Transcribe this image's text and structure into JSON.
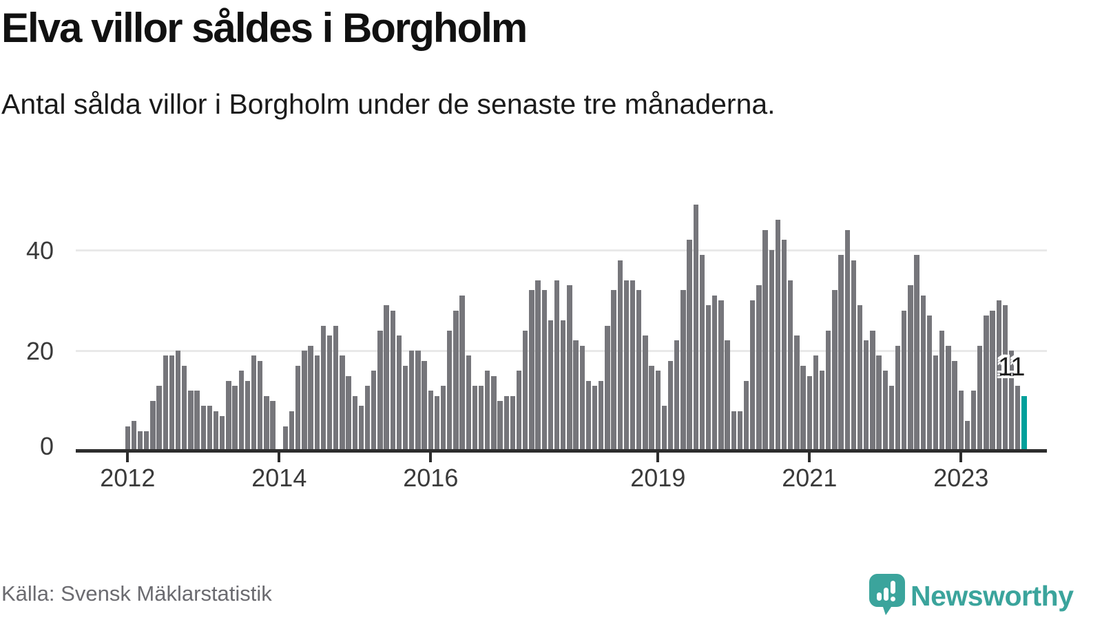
{
  "header": {
    "title": "Elva villor såldes i Borgholm",
    "subtitle": "Antal sålda villor i Borgholm under de senaste tre månaderna."
  },
  "footer": {
    "source": "Källa: Svensk Mäklarstatistik",
    "brand": "Newsworthy"
  },
  "icons": {
    "logo": "newsworthy-speech-bubble-bar-chart-icon"
  },
  "colors": {
    "bar": "#76767b",
    "highlight": "#00a09b",
    "axis": "#2d2d2d",
    "grid": "#e9e9e9",
    "brand_teal": "#3ba49c",
    "text": "#111111",
    "muted_text": "#6b6b70",
    "tick_text": "#3a3a3a"
  },
  "chart_data": {
    "type": "bar",
    "title": "Elva villor såldes i Borgholm",
    "xlabel": "",
    "ylabel": "",
    "x_monthly_start": "2012-01",
    "x_monthly_end": "2023-11",
    "values": [
      5,
      6,
      4,
      4,
      10,
      13,
      19,
      19,
      20,
      17,
      12,
      12,
      9,
      9,
      8,
      7,
      14,
      13,
      16,
      14,
      19,
      18,
      11,
      10,
      0,
      5,
      8,
      17,
      20,
      21,
      19,
      25,
      23,
      25,
      19,
      15,
      11,
      9,
      13,
      16,
      24,
      29,
      28,
      23,
      17,
      20,
      20,
      18,
      12,
      11,
      13,
      24,
      28,
      31,
      19,
      13,
      13,
      16,
      15,
      10,
      11,
      11,
      16,
      24,
      32,
      34,
      32,
      26,
      34,
      26,
      33,
      22,
      21,
      14,
      13,
      14,
      25,
      32,
      38,
      34,
      34,
      32,
      23,
      17,
      16,
      9,
      18,
      22,
      32,
      42,
      49,
      39,
      29,
      31,
      30,
      22,
      8,
      8,
      14,
      30,
      33,
      44,
      40,
      46,
      42,
      34,
      23,
      17,
      15,
      19,
      16,
      24,
      32,
      39,
      44,
      38,
      29,
      22,
      24,
      19,
      16,
      13,
      21,
      28,
      33,
      39,
      31,
      27,
      19,
      24,
      21,
      18,
      12,
      6,
      12,
      21,
      27,
      28,
      30,
      29,
      20,
      13,
      11
    ],
    "highlight_last_bar": true,
    "annotation": {
      "text": "11",
      "value": 11,
      "target": "last-bar"
    },
    "y_ticks": [
      0,
      20,
      40
    ],
    "ylim": [
      0,
      52
    ],
    "x_ticks": [
      {
        "label": "2012",
        "month_index": 0
      },
      {
        "label": "2014",
        "month_index": 24
      },
      {
        "label": "2016",
        "month_index": 48
      },
      {
        "label": "2019",
        "month_index": 84
      },
      {
        "label": "2021",
        "month_index": 108
      },
      {
        "label": "2023",
        "month_index": 132
      }
    ],
    "grid": "horizontal",
    "legend": "none"
  }
}
